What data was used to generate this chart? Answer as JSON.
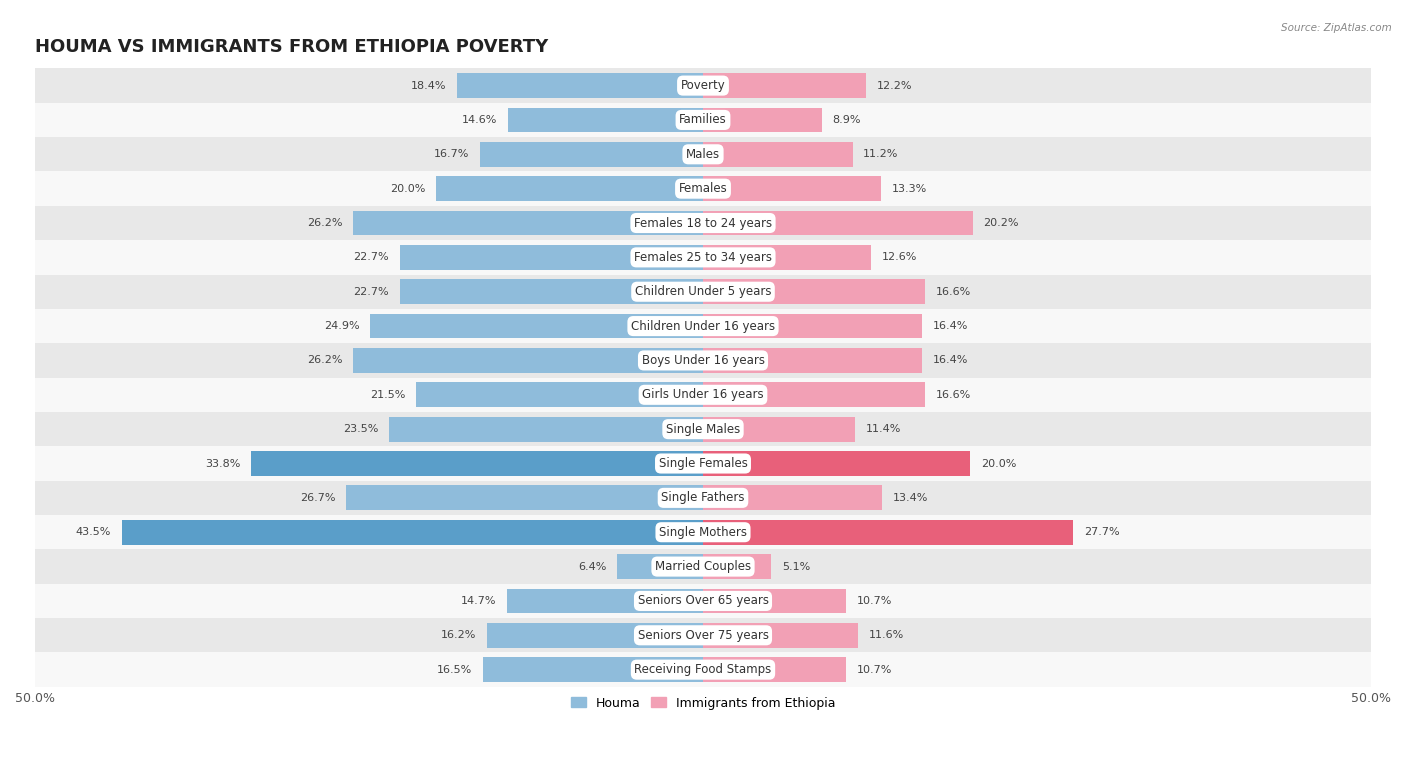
{
  "title": "HOUMA VS IMMIGRANTS FROM ETHIOPIA POVERTY",
  "source": "Source: ZipAtlas.com",
  "categories": [
    "Poverty",
    "Families",
    "Males",
    "Females",
    "Females 18 to 24 years",
    "Females 25 to 34 years",
    "Children Under 5 years",
    "Children Under 16 years",
    "Boys Under 16 years",
    "Girls Under 16 years",
    "Single Males",
    "Single Females",
    "Single Fathers",
    "Single Mothers",
    "Married Couples",
    "Seniors Over 65 years",
    "Seniors Over 75 years",
    "Receiving Food Stamps"
  ],
  "houma_values": [
    18.4,
    14.6,
    16.7,
    20.0,
    26.2,
    22.7,
    22.7,
    24.9,
    26.2,
    21.5,
    23.5,
    33.8,
    26.7,
    43.5,
    6.4,
    14.7,
    16.2,
    16.5
  ],
  "ethiopia_values": [
    12.2,
    8.9,
    11.2,
    13.3,
    20.2,
    12.6,
    16.6,
    16.4,
    16.4,
    16.6,
    11.4,
    20.0,
    13.4,
    27.7,
    5.1,
    10.7,
    11.6,
    10.7
  ],
  "houma_color": "#8fbcdb",
  "ethiopia_color": "#f2a0b5",
  "houma_highlight_color": "#5a9ec9",
  "ethiopia_highlight_color": "#e8607a",
  "highlight_rows": [
    11,
    13
  ],
  "axis_max": 50.0,
  "bg_color": "#ffffff",
  "row_even_color": "#e8e8e8",
  "row_odd_color": "#f8f8f8",
  "legend_houma": "Houma",
  "legend_ethiopia": "Immigrants from Ethiopia",
  "title_fontsize": 13,
  "label_fontsize": 8.5,
  "value_fontsize": 8.0,
  "bar_height": 0.72
}
